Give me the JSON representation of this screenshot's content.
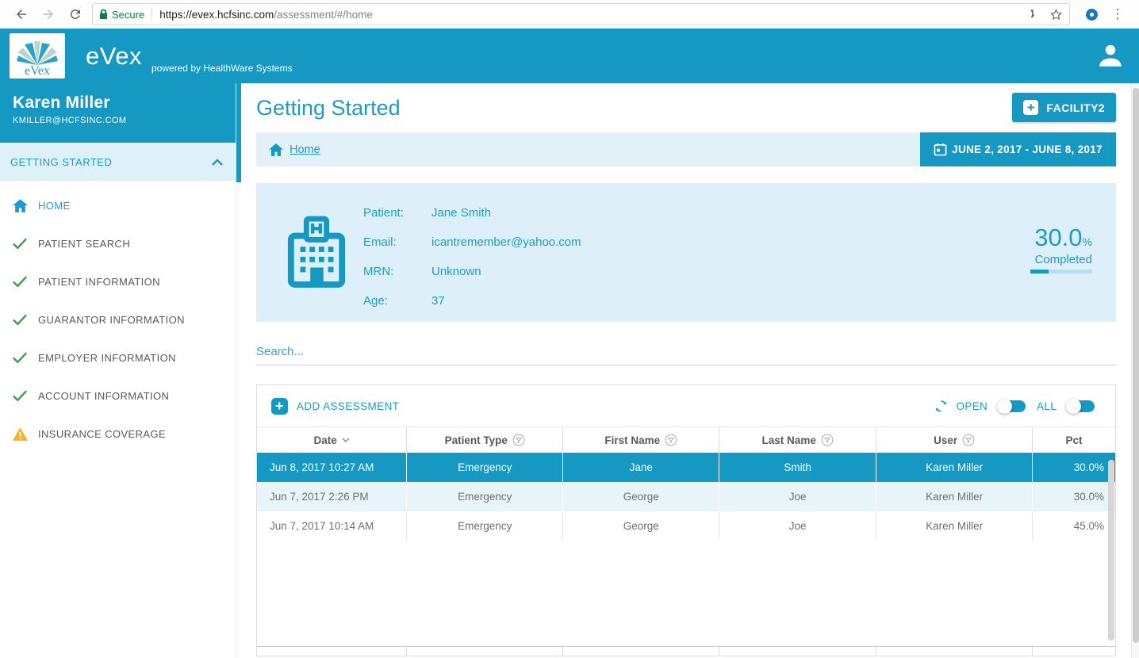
{
  "browser": {
    "secure_label": "Secure",
    "url_domain": "https://evex.hcfsinc.com",
    "url_path": "/assessment/#/home"
  },
  "header": {
    "logo_text": "eVex",
    "brand": "eVex",
    "powered_by": "powered by HealthWare Systems"
  },
  "sidebar": {
    "user_name": "Karen Miller",
    "user_email": "KMILLER@HCFSINC.COM",
    "section_title": "GETTING STARTED",
    "items": [
      {
        "label": "HOME",
        "icon": "home-icon",
        "state": "active"
      },
      {
        "label": "PATIENT SEARCH",
        "icon": "check-icon",
        "state": "complete"
      },
      {
        "label": "PATIENT INFORMATION",
        "icon": "check-icon",
        "state": "complete"
      },
      {
        "label": "GUARANTOR INFORMATION",
        "icon": "check-icon",
        "state": "complete"
      },
      {
        "label": "EMPLOYER INFORMATION",
        "icon": "check-icon",
        "state": "complete"
      },
      {
        "label": "ACCOUNT INFORMATION",
        "icon": "check-icon",
        "state": "complete"
      },
      {
        "label": "INSURANCE COVERAGE",
        "icon": "warning-icon",
        "state": "warning"
      }
    ]
  },
  "main": {
    "page_title": "Getting Started",
    "facility_button": "FACILITY2",
    "breadcrumb_home": "Home",
    "date_range": "JUNE 2, 2017 - JUNE 8, 2017",
    "patient_card": {
      "labels": {
        "patient": "Patient:",
        "email": "Email:",
        "mrn": "MRN:",
        "age": "Age:"
      },
      "values": {
        "patient": "Jane Smith",
        "email": "icantremember@yahoo.com",
        "mrn": "Unknown",
        "age": "37"
      },
      "completion_pct": "30.0",
      "pct_symbol": "%",
      "completion_label": "Completed",
      "progress_percent": 30
    },
    "search_placeholder": "Search...",
    "table": {
      "add_button": "ADD ASSESSMENT",
      "open_label": "OPEN",
      "all_label": "ALL",
      "columns": [
        "Date",
        "Patient Type",
        "First Name",
        "Last Name",
        "User",
        "Pct"
      ],
      "rows": [
        {
          "date": "Jun 8, 2017 10:27 AM",
          "patient_type": "Emergency",
          "first_name": "Jane",
          "last_name": "Smith",
          "user": "Karen Miller",
          "pct": "30.0%",
          "selected": true
        },
        {
          "date": "Jun 7, 2017 2:26 PM",
          "patient_type": "Emergency",
          "first_name": "George",
          "last_name": "Joe",
          "user": "Karen Miller",
          "pct": "30.0%",
          "selected": false
        },
        {
          "date": "Jun 7, 2017 10:14 AM",
          "patient_type": "Emergency",
          "first_name": "George",
          "last_name": "Joe",
          "user": "Karen Miller",
          "pct": "45.0%",
          "selected": false
        }
      ]
    }
  },
  "colors": {
    "primary_teal": "#1598c1",
    "light_blue_bg": "#e2f1f8",
    "check_green": "#3c9e47",
    "warning_yellow": "#f5b324",
    "secure_green": "#0b8043"
  }
}
